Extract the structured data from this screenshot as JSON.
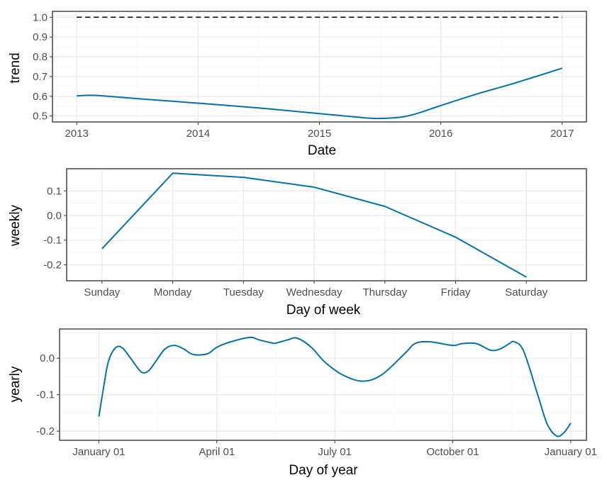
{
  "colors": {
    "line": "#0072b2",
    "cap": "#000000"
  },
  "chart_data": [
    {
      "type": "line",
      "name": "trend",
      "xlabel": "Date",
      "ylabel": "trend",
      "xlim": [
        2012.8,
        2017.2
      ],
      "ylim": [
        0.47,
        1.03
      ],
      "xticks": [
        {
          "value": 2013,
          "label": "2013"
        },
        {
          "value": 2014,
          "label": "2014"
        },
        {
          "value": 2015,
          "label": "2015"
        },
        {
          "value": 2016,
          "label": "2016"
        },
        {
          "value": 2017,
          "label": "2017"
        }
      ],
      "yticks": [
        {
          "value": 0.5,
          "label": "0.5"
        },
        {
          "value": 0.6,
          "label": "0.6"
        },
        {
          "value": 0.7,
          "label": "0.7"
        },
        {
          "value": 0.8,
          "label": "0.8"
        },
        {
          "value": 0.9,
          "label": "0.9"
        },
        {
          "value": 1.0,
          "label": "1.0"
        }
      ],
      "grid": true,
      "cap_line": {
        "y": 1.0,
        "x_range": [
          2013,
          2017
        ],
        "style": "dashed"
      },
      "x": [
        2013.0,
        2013.1,
        2013.2,
        2013.5,
        2014.0,
        2014.5,
        2015.0,
        2015.3,
        2015.45,
        2015.6,
        2015.7,
        2015.8,
        2016.0,
        2016.3,
        2016.6,
        2017.0
      ],
      "values": [
        0.602,
        0.605,
        0.603,
        0.588,
        0.565,
        0.541,
        0.512,
        0.495,
        0.488,
        0.49,
        0.497,
        0.512,
        0.553,
        0.612,
        0.665,
        0.742
      ]
    },
    {
      "type": "line",
      "name": "weekly",
      "xlabel": "Day of week",
      "ylabel": "weekly",
      "categories": [
        "Sunday",
        "Monday",
        "Tuesday",
        "Wednesday",
        "Thursday",
        "Friday",
        "Saturday"
      ],
      "ylim": [
        -0.265,
        0.19
      ],
      "yticks": [
        {
          "value": 0.1,
          "label": "0.1"
        },
        {
          "value": 0.0,
          "label": "0.0"
        },
        {
          "value": -0.1,
          "label": "-0.1"
        },
        {
          "value": -0.2,
          "label": "-0.2"
        }
      ],
      "grid": true,
      "values": [
        -0.135,
        0.172,
        0.155,
        0.115,
        0.037,
        -0.088,
        -0.25
      ]
    },
    {
      "type": "line",
      "name": "yearly",
      "xlabel": "Day of year",
      "ylabel": "yearly",
      "xlim": [
        -0.0833,
        1.0333
      ],
      "ylim": [
        -0.225,
        0.08
      ],
      "xticks": [
        {
          "value": 0.0,
          "label": "January 01"
        },
        {
          "value": 0.25,
          "label": "April 01"
        },
        {
          "value": 0.5,
          "label": "July 01"
        },
        {
          "value": 0.75,
          "label": "October 01"
        },
        {
          "value": 1.0,
          "label": "January 01"
        }
      ],
      "yticks": [
        {
          "value": 0.0,
          "label": "0.0"
        },
        {
          "value": -0.1,
          "label": "-0.1"
        },
        {
          "value": -0.2,
          "label": "-0.2"
        }
      ],
      "grid": true,
      "x": [
        0.0,
        0.01,
        0.02,
        0.035,
        0.05,
        0.07,
        0.09,
        0.105,
        0.12,
        0.14,
        0.16,
        0.18,
        0.2,
        0.23,
        0.25,
        0.28,
        0.32,
        0.34,
        0.37,
        0.38,
        0.4,
        0.42,
        0.45,
        0.48,
        0.52,
        0.56,
        0.6,
        0.65,
        0.67,
        0.7,
        0.75,
        0.77,
        0.8,
        0.83,
        0.85,
        0.87,
        0.88,
        0.9,
        0.93,
        0.95,
        0.97,
        0.985,
        1.0
      ],
      "values": [
        -0.16,
        -0.08,
        -0.01,
        0.028,
        0.028,
        -0.005,
        -0.038,
        -0.035,
        -0.01,
        0.025,
        0.035,
        0.025,
        0.01,
        0.012,
        0.03,
        0.045,
        0.057,
        0.05,
        0.041,
        0.043,
        0.05,
        0.055,
        0.03,
        -0.012,
        -0.048,
        -0.063,
        -0.045,
        0.015,
        0.04,
        0.045,
        0.035,
        0.04,
        0.04,
        0.022,
        0.025,
        0.04,
        0.045,
        0.02,
        -0.1,
        -0.18,
        -0.213,
        -0.205,
        -0.178
      ]
    }
  ]
}
